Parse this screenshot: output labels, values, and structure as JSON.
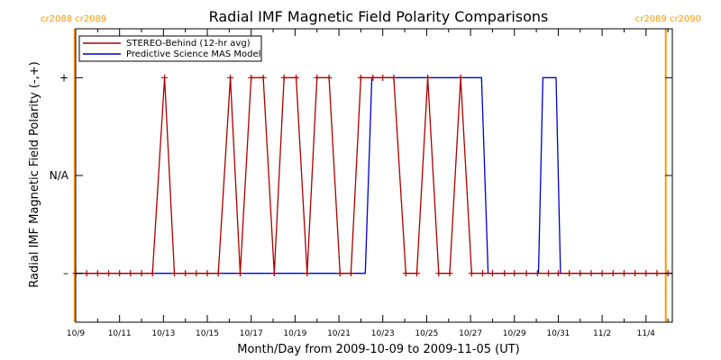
{
  "chart_data": {
    "type": "line",
    "title": "Radial IMF Magnetic Field Polarity Comparisons",
    "xlabel": "Month/Day from 2009-10-09 to 2009-11-05 (UT)",
    "ylabel": "Radial IMF Magnetic Field Polarity (-,+)",
    "x_unit": "days since 2009-10-09 00:00 UT",
    "xlim": [
      0,
      27.2
    ],
    "ylim": [
      -1.5,
      1.5
    ],
    "x_ticks": [
      {
        "value": 0,
        "label": "10/9"
      },
      {
        "value": 2,
        "label": "10/11"
      },
      {
        "value": 4,
        "label": "10/13"
      },
      {
        "value": 6,
        "label": "10/15"
      },
      {
        "value": 8,
        "label": "10/17"
      },
      {
        "value": 10,
        "label": "10/19"
      },
      {
        "value": 12,
        "label": "10/21"
      },
      {
        "value": 14,
        "label": "10/23"
      },
      {
        "value": 16,
        "label": "10/25"
      },
      {
        "value": 18,
        "label": "10/27"
      },
      {
        "value": 20,
        "label": "10/29"
      },
      {
        "value": 22,
        "label": "10/31"
      },
      {
        "value": 24,
        "label": "11/2"
      },
      {
        "value": 26,
        "label": "11/4"
      }
    ],
    "y_ticks": [
      {
        "value": 1,
        "label": "+"
      },
      {
        "value": 0,
        "label": "N/A"
      },
      {
        "value": -1,
        "label": "–"
      }
    ],
    "grid": false,
    "legend_position": "top-left",
    "carrington_markers": [
      {
        "x": -0.05,
        "label": "cr2088 cr2089",
        "anchor": "left"
      },
      {
        "x": 26.9,
        "label": "cr2089 cr2090",
        "anchor": "right"
      }
    ],
    "series": [
      {
        "name": "STEREO-Behind (12-hr avg)",
        "color": "#aa0000",
        "marker": "plus",
        "x": [
          0,
          0.5,
          1,
          1.5,
          2,
          2.5,
          3,
          3.5,
          4.05,
          4.5,
          5,
          5.5,
          6,
          6.5,
          7.05,
          7.5,
          8.0,
          8.55,
          9.05,
          9.5,
          10.05,
          10.55,
          11.0,
          11.55,
          12.05,
          12.55,
          13.0,
          13.55,
          14.0,
          14.5,
          15.05,
          15.55,
          16.05,
          16.55,
          17.05,
          17.55,
          18.05,
          18.55,
          19.0,
          19.55,
          20.0,
          20.55,
          21.05,
          21.55,
          22.0,
          22.5,
          23.0,
          23.5,
          24.0,
          24.5,
          25.0,
          25.5,
          26.0,
          26.5,
          27.0
        ],
        "y": [
          -1,
          -1,
          -1,
          -1,
          -1,
          -1,
          -1,
          -1,
          1,
          -1,
          -1,
          -1,
          -1,
          -1,
          1,
          -1,
          1,
          1,
          -1,
          1,
          1,
          -1,
          1,
          1,
          -1,
          -1,
          1,
          1,
          1,
          1,
          -1,
          -1,
          1,
          -1,
          -1,
          1,
          -1,
          -1,
          -1,
          -1,
          -1,
          -1,
          -1,
          -1,
          -1,
          -1,
          -1,
          -1,
          -1,
          -1,
          -1,
          -1,
          -1,
          -1,
          -1
        ]
      },
      {
        "name": "Predictive Science MAS Model",
        "color": "#0000cc",
        "marker": "none",
        "x": [
          0,
          13.2,
          13.5,
          18.5,
          18.8,
          21.1,
          21.3,
          21.9,
          22.1,
          27.2
        ],
        "y": [
          -1,
          -1,
          1,
          1,
          -1,
          -1,
          1,
          1,
          -1,
          -1
        ]
      }
    ]
  },
  "colors": {
    "carrington": "#ff9900",
    "axis": "#000000"
  }
}
